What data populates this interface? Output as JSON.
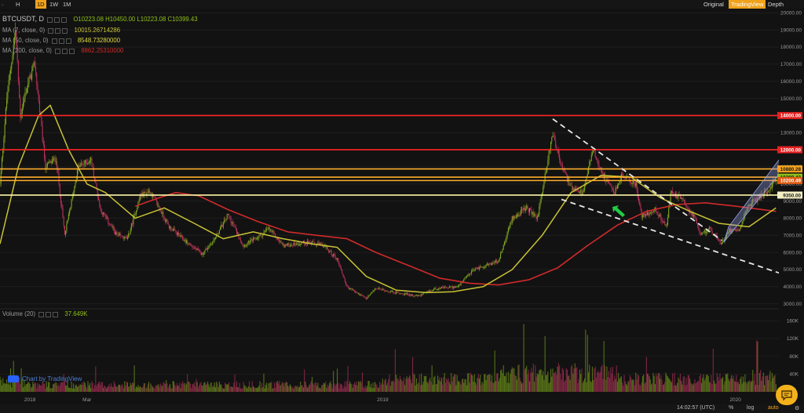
{
  "toolbar": {
    "timeframes": [
      {
        "label": "H",
        "active": false
      },
      {
        "label": "4H",
        "active": false
      },
      {
        "label": "1D",
        "active": true
      },
      {
        "label": "1W",
        "active": false
      },
      {
        "label": "1M",
        "active": false
      }
    ],
    "views": [
      {
        "label": "Original",
        "active": false
      },
      {
        "label": "TradingView",
        "active": true
      },
      {
        "label": "Depth",
        "active": false
      }
    ]
  },
  "legend": {
    "symbol": "BTCUSDT, D",
    "ohlc": "O10223.08  H10450.00  L10223.08  C10399.43",
    "ma7_label": "MA (7, close, 0)",
    "ma7_value": "10015.26714286",
    "ma50_label": "MA (50, close, 0)",
    "ma50_value": "8548.73280000",
    "ma200_label": "MA (200, close, 0)",
    "ma200_value": "8862.25310000",
    "volume_label": "Volume (20)",
    "volume_value": "37.649K"
  },
  "watermark": "Chart by TradingView",
  "bottombar": {
    "time": "14:02:57 (UTC)",
    "percent": "%",
    "log": "log",
    "auto": "auto"
  },
  "colors": {
    "up": "#7fa71f",
    "down": "#b8325a",
    "ma7": "#c8c234",
    "ma50": "#d02a2a",
    "resistance": "#ff2424",
    "support": "#ffae2c",
    "accent": "#f0a21a",
    "arrow": "#22cc44"
  },
  "chart_data": {
    "type": "candlestick",
    "x_range": [
      "2017-12-01",
      "2020-02-15"
    ],
    "x_ticks": [
      "2018",
      "Mar",
      "2019",
      "2020"
    ],
    "y_ticks": [
      "20000.00",
      "19000.00",
      "18000.00",
      "17000.00",
      "16000.00",
      "15000.00",
      "14000.00",
      "13000.00",
      "12000.00",
      "11000.00",
      "10000.00",
      "9000.00",
      "8000.00",
      "7000.00",
      "6000.00",
      "5000.00",
      "4000.00",
      "3000.00"
    ],
    "ylim": [
      2800,
      20200
    ],
    "price_path": [
      [
        "2017-12-01",
        10000
      ],
      [
        "2017-12-08",
        15000
      ],
      [
        "2017-12-17",
        19000
      ],
      [
        "2017-12-22",
        14000
      ],
      [
        "2017-12-28",
        15500
      ],
      [
        "2018-01-06",
        17000
      ],
      [
        "2018-01-17",
        11000
      ],
      [
        "2018-01-28",
        11500
      ],
      [
        "2018-02-06",
        7000
      ],
      [
        "2018-02-20",
        11000
      ],
      [
        "2018-03-05",
        11400
      ],
      [
        "2018-03-15",
        8500
      ],
      [
        "2018-04-01",
        7000
      ],
      [
        "2018-04-12",
        6800
      ],
      [
        "2018-04-25",
        9300
      ],
      [
        "2018-05-05",
        9600
      ],
      [
        "2018-05-25",
        7500
      ],
      [
        "2018-06-10",
        6700
      ],
      [
        "2018-06-28",
        5900
      ],
      [
        "2018-07-10",
        6700
      ],
      [
        "2018-07-25",
        8200
      ],
      [
        "2018-08-10",
        6400
      ],
      [
        "2018-08-28",
        7000
      ],
      [
        "2018-09-05",
        7400
      ],
      [
        "2018-09-20",
        6400
      ],
      [
        "2018-10-15",
        6600
      ],
      [
        "2018-11-01",
        6400
      ],
      [
        "2018-11-15",
        5600
      ],
      [
        "2018-11-25",
        4000
      ],
      [
        "2018-12-15",
        3300
      ],
      [
        "2018-12-25",
        3900
      ],
      [
        "2019-01-10",
        3700
      ],
      [
        "2019-02-07",
        3450
      ],
      [
        "2019-02-25",
        3900
      ],
      [
        "2019-03-20",
        4000
      ],
      [
        "2019-04-05",
        5000
      ],
      [
        "2019-05-01",
        5500
      ],
      [
        "2019-05-15",
        8000
      ],
      [
        "2019-05-30",
        8600
      ],
      [
        "2019-06-10",
        8000
      ],
      [
        "2019-06-26",
        13000
      ],
      [
        "2019-07-05",
        11000
      ],
      [
        "2019-07-17",
        9600
      ],
      [
        "2019-07-28",
        9500
      ],
      [
        "2019-08-06",
        12000
      ],
      [
        "2019-08-20",
        10200
      ],
      [
        "2019-08-29",
        9500
      ],
      [
        "2019-09-05",
        10500
      ],
      [
        "2019-09-20",
        10000
      ],
      [
        "2019-09-26",
        8100
      ],
      [
        "2019-10-10",
        8500
      ],
      [
        "2019-10-22",
        7500
      ],
      [
        "2019-10-26",
        9500
      ],
      [
        "2019-11-05",
        9200
      ],
      [
        "2019-11-20",
        8000
      ],
      [
        "2019-11-25",
        7000
      ],
      [
        "2019-12-05",
        7400
      ],
      [
        "2019-12-18",
        6500
      ],
      [
        "2019-12-25",
        7300
      ],
      [
        "2020-01-05",
        7400
      ],
      [
        "2020-01-15",
        8800
      ],
      [
        "2020-01-28",
        9300
      ],
      [
        "2020-02-05",
        9700
      ],
      [
        "2020-02-12",
        10400
      ]
    ],
    "ma50_path": [
      [
        "2017-12-01",
        6500
      ],
      [
        "2017-12-20",
        11000
      ],
      [
        "2018-01-10",
        14000
      ],
      [
        "2018-01-22",
        14600
      ],
      [
        "2018-02-10",
        12000
      ],
      [
        "2018-03-01",
        10000
      ],
      [
        "2018-03-20",
        9500
      ],
      [
        "2018-04-20",
        8000
      ],
      [
        "2018-05-20",
        8600
      ],
      [
        "2018-06-20",
        7700
      ],
      [
        "2018-07-20",
        6800
      ],
      [
        "2018-08-20",
        7200
      ],
      [
        "2018-09-20",
        6800
      ],
      [
        "2018-10-20",
        6500
      ],
      [
        "2018-11-15",
        6300
      ],
      [
        "2018-12-15",
        4600
      ],
      [
        "2019-01-15",
        3800
      ],
      [
        "2019-02-15",
        3650
      ],
      [
        "2019-03-15",
        3700
      ],
      [
        "2019-04-15",
        4000
      ],
      [
        "2019-05-15",
        5000
      ],
      [
        "2019-06-15",
        7000
      ],
      [
        "2019-07-15",
        9500
      ],
      [
        "2019-08-15",
        10500
      ],
      [
        "2019-09-15",
        10400
      ],
      [
        "2019-10-15",
        9200
      ],
      [
        "2019-11-15",
        8400
      ],
      [
        "2019-12-15",
        7700
      ],
      [
        "2020-01-15",
        7500
      ],
      [
        "2020-02-12",
        8600
      ]
    ],
    "ma200_path": [
      [
        "2018-04-20",
        8700
      ],
      [
        "2018-05-15",
        9200
      ],
      [
        "2018-06-01",
        9500
      ],
      [
        "2018-06-25",
        9300
      ],
      [
        "2018-07-25",
        8500
      ],
      [
        "2018-08-25",
        7800
      ],
      [
        "2018-09-25",
        7200
      ],
      [
        "2018-10-25",
        7000
      ],
      [
        "2018-11-25",
        6800
      ],
      [
        "2018-12-25",
        6000
      ],
      [
        "2019-01-25",
        5300
      ],
      [
        "2019-03-01",
        4500
      ],
      [
        "2019-04-01",
        4200
      ],
      [
        "2019-05-01",
        4100
      ],
      [
        "2019-06-01",
        4400
      ],
      [
        "2019-07-01",
        5100
      ],
      [
        "2019-08-01",
        6400
      ],
      [
        "2019-09-01",
        7600
      ],
      [
        "2019-10-01",
        8400
      ],
      [
        "2019-11-01",
        8800
      ],
      [
        "2019-12-01",
        8900
      ],
      [
        "2020-01-01",
        8700
      ],
      [
        "2020-02-12",
        8400
      ]
    ],
    "horizontal_lines": [
      {
        "price": 14000,
        "label": "14000.00",
        "color": "#ff2424",
        "tag_bg": "#e52020",
        "tag_fg": "#ffffff"
      },
      {
        "price": 12000,
        "label": "12000.00",
        "color": "#ff2424",
        "tag_bg": "#e52020",
        "tag_fg": "#ffffff"
      },
      {
        "price": 10880.28,
        "label": "10880.28",
        "color": "#ffae2c",
        "tag_bg": "#f2a21e",
        "tag_fg": "#1a1a1a"
      },
      {
        "price": 10399.43,
        "label": "10399.43",
        "color": "#ffae2c",
        "tag_bg": "#8fbf1a",
        "tag_fg": "#1a1a1a"
      },
      {
        "price": 10200.49,
        "label": "10200.49",
        "color": "#ffae2c",
        "tag_bg": "#e05a12",
        "tag_fg": "#ffffff"
      },
      {
        "price": 9350.0,
        "label": "9350.00",
        "color": "#fff6a8",
        "tag_bg": "#f4efc4",
        "tag_fg": "#1a1a1a"
      }
    ],
    "trendlines": [
      {
        "from": [
          "2019-06-26",
          13800
        ],
        "to": [
          "2019-12-18",
          6700
        ]
      },
      {
        "from": [
          "2019-07-05",
          9100
        ],
        "to": [
          "2020-04-05",
          3850
        ]
      }
    ],
    "channel": [
      [
        "2019-12-20",
        6600
      ],
      [
        "2019-12-25",
        7500
      ],
      [
        "2020-02-23",
        12000
      ],
      [
        "2020-02-20",
        10900
      ]
    ],
    "volume": {
      "y_ticks": [
        "160K",
        "120K",
        "80K",
        "40K"
      ],
      "ylim": [
        0,
        180000
      ]
    }
  }
}
